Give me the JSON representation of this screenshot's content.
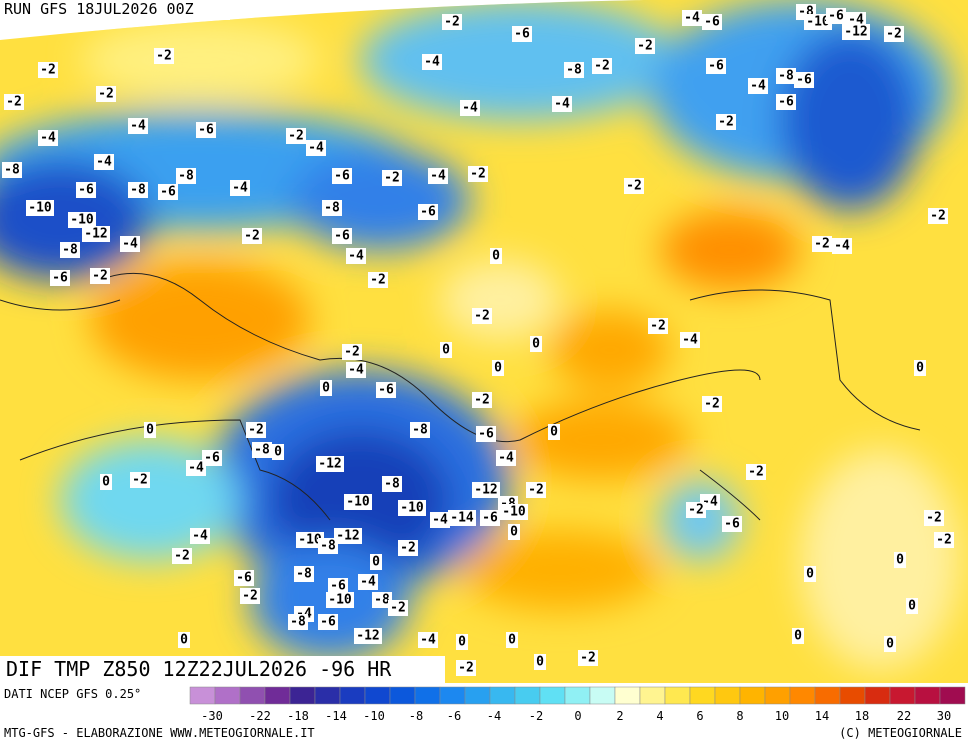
{
  "run_label": "RUN GFS 18JUL2026 00Z",
  "field_label": "DIF TMP Z850 12Z22JUL2026 -96 HR",
  "source_label": "DATI NCEP GFS 0.25°",
  "credit_left": "MTG-GFS - ELABORAZIONE WWW.METEOGIORNALE.IT",
  "credit_right": "(C) METEOGIORNALE",
  "colorbar_ticks": [
    -30,
    -22,
    -18,
    -14,
    -10,
    -8,
    -6,
    -4,
    -2,
    0,
    2,
    4,
    6,
    8,
    10,
    14,
    18,
    22,
    30
  ],
  "contour_labels": [
    -2,
    -4,
    -6,
    -8,
    -10,
    -6,
    -4,
    -12,
    -2,
    -6,
    -2,
    -2,
    -2,
    -4,
    -8,
    -2,
    -6,
    -8,
    -6,
    -4,
    -2,
    -2,
    -4,
    -4,
    -6,
    -4,
    -6,
    -2,
    -4,
    -2,
    -4,
    -4,
    -8,
    -8,
    -6,
    -2,
    -4,
    -2,
    -6,
    -8,
    -6,
    -4,
    -2,
    -10,
    -8,
    -6,
    -10,
    -2,
    -12,
    -2,
    -6,
    -2,
    -4,
    -4,
    -8,
    -4,
    0,
    -6,
    -2,
    -2,
    -2,
    -2,
    -4,
    0,
    -2,
    0,
    -4,
    0,
    0,
    -6,
    0,
    -2,
    -2,
    0,
    -8,
    -6,
    0,
    -2,
    -8,
    0,
    -6,
    -4,
    -4,
    -12,
    -2,
    0,
    -2,
    -8,
    -12,
    -2,
    -10,
    -10,
    -8,
    -4,
    -2,
    -2,
    -4,
    -14,
    -6,
    -10,
    -6,
    0,
    -10,
    -12,
    -8,
    -4,
    -2,
    -2,
    -2,
    0,
    0,
    -6,
    -8,
    -4,
    0,
    -6,
    -2,
    -10,
    -8,
    -2,
    0,
    -4,
    -6,
    -8,
    -12,
    -4,
    0,
    0,
    0,
    0,
    0,
    -2,
    0,
    -2
  ]
}
